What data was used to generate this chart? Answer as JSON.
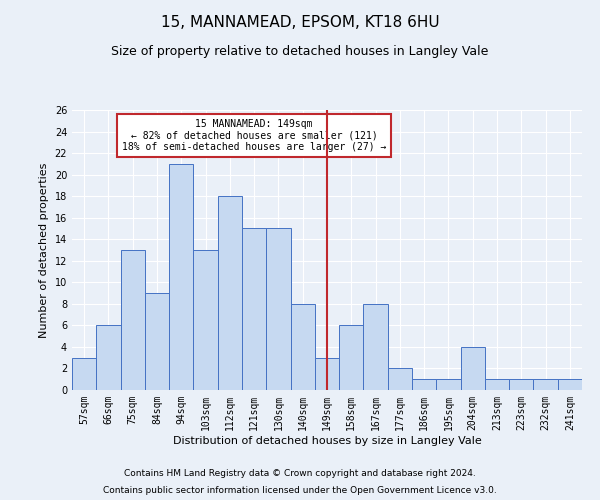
{
  "title1": "15, MANNAMEAD, EPSOM, KT18 6HU",
  "title2": "Size of property relative to detached houses in Langley Vale",
  "xlabel": "Distribution of detached houses by size in Langley Vale",
  "ylabel": "Number of detached properties",
  "categories": [
    "57sqm",
    "66sqm",
    "75sqm",
    "84sqm",
    "94sqm",
    "103sqm",
    "112sqm",
    "121sqm",
    "130sqm",
    "140sqm",
    "149sqm",
    "158sqm",
    "167sqm",
    "177sqm",
    "186sqm",
    "195sqm",
    "204sqm",
    "213sqm",
    "223sqm",
    "232sqm",
    "241sqm"
  ],
  "values": [
    3,
    6,
    13,
    9,
    21,
    13,
    18,
    15,
    15,
    8,
    3,
    6,
    8,
    2,
    1,
    1,
    4,
    1,
    1,
    1,
    1
  ],
  "bar_color": "#c6d9f1",
  "bar_edge_color": "#4472c4",
  "vline_x_index": 10,
  "vline_color": "#c0282d",
  "annotation_title": "15 MANNAMEAD: 149sqm",
  "annotation_line1": "← 82% of detached houses are smaller (121)",
  "annotation_line2": "18% of semi-detached houses are larger (27) →",
  "annotation_box_color": "#c0282d",
  "ylim": [
    0,
    26
  ],
  "yticks": [
    0,
    2,
    4,
    6,
    8,
    10,
    12,
    14,
    16,
    18,
    20,
    22,
    24,
    26
  ],
  "footer1": "Contains HM Land Registry data © Crown copyright and database right 2024.",
  "footer2": "Contains public sector information licensed under the Open Government Licence v3.0.",
  "background_color": "#eaf0f8",
  "grid_color": "#ffffff",
  "title1_fontsize": 11,
  "title2_fontsize": 9,
  "axis_label_fontsize": 8,
  "tick_fontsize": 7,
  "footer_fontsize": 6.5,
  "annotation_fontsize": 7
}
